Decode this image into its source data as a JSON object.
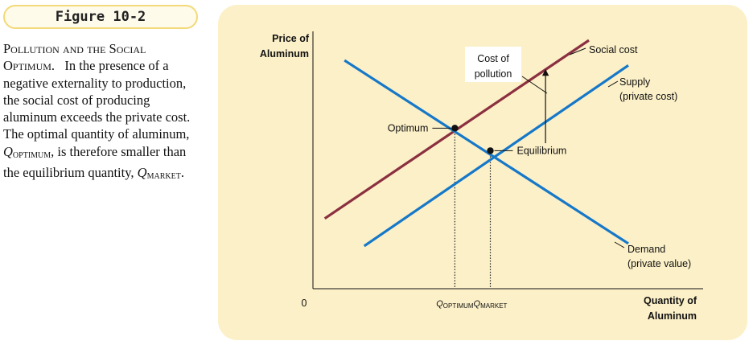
{
  "figure_label": "Figure 10-2",
  "caption": {
    "title": "Pollution and the Social Optimum.",
    "text1": "In the presence of a negative externality to production, the social cost of producing aluminum exceeds the private cost. The optimal quantity of aluminum,",
    "q1": "Q",
    "q1_sub": "OPTIMUM",
    "text2": ", is therefore smaller than the equilibrium quantity,",
    "q2": "Q",
    "q2_sub": "MARKET",
    "text3": "."
  },
  "chart_data": {
    "type": "line",
    "title": "",
    "ylabel": [
      "Price of",
      "Aluminum"
    ],
    "xlabel": [
      "Quantity of",
      "Aluminum"
    ],
    "origin_label": "0",
    "xlim": [
      0,
      100
    ],
    "ylim": [
      0,
      100
    ],
    "grid": false,
    "series": [
      {
        "name": "Social cost",
        "color": "#8b3040",
        "points": [
          [
            3,
            28
          ],
          [
            70,
            99
          ]
        ]
      },
      {
        "name": "Supply (private cost)",
        "color": "#1678c8",
        "points": [
          [
            13,
            17
          ],
          [
            80,
            89
          ]
        ]
      },
      {
        "name": "Demand (private value)",
        "color": "#1678c8",
        "points": [
          [
            8,
            91
          ],
          [
            80,
            18
          ]
        ]
      }
    ],
    "series_labels": {
      "social_cost": [
        "Social cost"
      ],
      "supply": [
        "Supply",
        "(private cost)"
      ],
      "demand": [
        "Demand",
        "(private value)"
      ]
    },
    "points": [
      {
        "name": "Optimum",
        "x": 36,
        "y": 64
      },
      {
        "name": "Equilibrium",
        "x": 45,
        "y": 55
      }
    ],
    "x_ticks": [
      {
        "value": 36,
        "label": "Q",
        "sub": "OPTIMUM"
      },
      {
        "value": 45,
        "label": "Q",
        "sub": "MARKET"
      }
    ],
    "annotation": {
      "text": [
        "Cost of",
        "pollution"
      ],
      "arrow_x": 59,
      "arrow_from": 58,
      "arrow_to": 87
    }
  }
}
